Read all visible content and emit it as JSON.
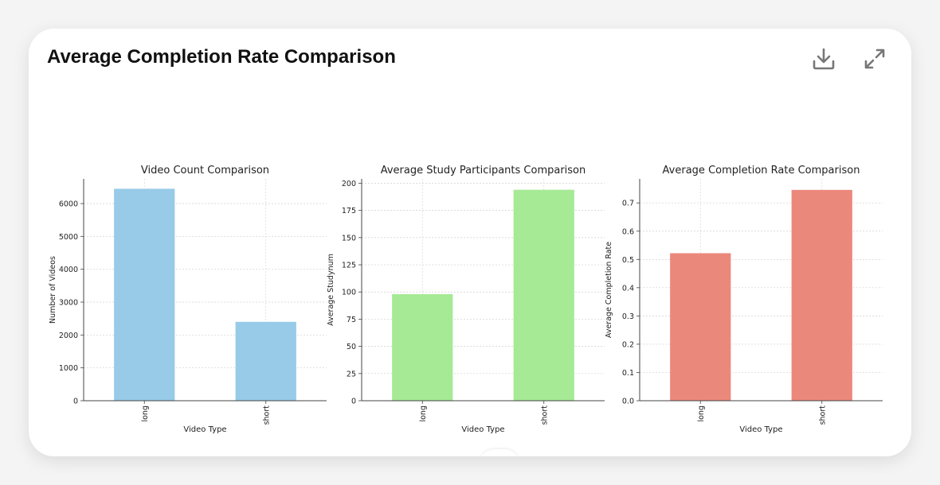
{
  "page": {
    "title": "Average Completion Rate Comparison",
    "icons": {
      "download": "download-icon",
      "expand": "expand-icon"
    }
  },
  "chart_data": [
    {
      "type": "bar",
      "title": "Video Count Comparison",
      "xlabel": "Video Type",
      "ylabel": "Number of Videos",
      "categories": [
        "long",
        "short"
      ],
      "values": [
        6450,
        2400
      ],
      "ylim": [
        0,
        6750
      ],
      "yticks": [
        0,
        1000,
        2000,
        3000,
        4000,
        5000,
        6000
      ],
      "ytick_labels": [
        "0",
        "1000",
        "2000",
        "3000",
        "4000",
        "5000",
        "6000"
      ],
      "color": "#97cbe8",
      "grid": true
    },
    {
      "type": "bar",
      "title": "Average Study Participants Comparison",
      "xlabel": "Video Type",
      "ylabel": "Average Studynum",
      "categories": [
        "long",
        "short"
      ],
      "values": [
        98,
        194
      ],
      "ylim": [
        0,
        204
      ],
      "yticks": [
        0,
        25,
        50,
        75,
        100,
        125,
        150,
        175,
        200
      ],
      "ytick_labels": [
        "0",
        "25",
        "50",
        "75",
        "100",
        "125",
        "150",
        "175",
        "200"
      ],
      "color": "#a6ea95",
      "grid": true
    },
    {
      "type": "bar",
      "title": "Average Completion Rate Comparison",
      "xlabel": "Video Type",
      "ylabel": "Average Completion Rate",
      "categories": [
        "long",
        "short"
      ],
      "values": [
        0.522,
        0.746
      ],
      "ylim": [
        0,
        0.785
      ],
      "yticks": [
        0,
        0.1,
        0.2,
        0.3,
        0.4,
        0.5,
        0.6,
        0.7
      ],
      "ytick_labels": [
        "0.0",
        "0.1",
        "0.2",
        "0.3",
        "0.4",
        "0.5",
        "0.6",
        "0.7"
      ],
      "color": "#eb887c",
      "grid": true
    }
  ]
}
